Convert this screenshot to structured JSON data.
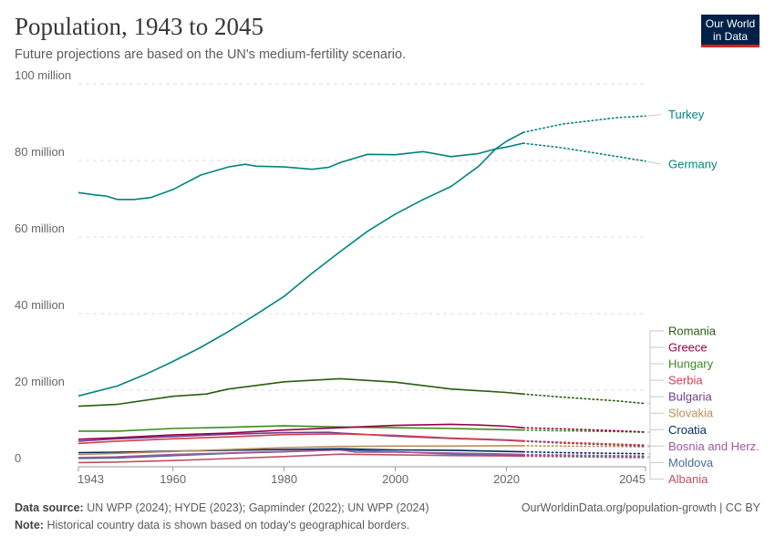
{
  "header": {
    "title": "Population, 1943 to 2045",
    "subtitle": "Future projections are based on the UN's medium-fertility scenario."
  },
  "logo": {
    "line1": "Our World",
    "line2": "in Data"
  },
  "footer": {
    "source_label": "Data source:",
    "source_text": "UN WPP (2024); HYDE (2023); Gapminder (2022); UN WPP (2024)",
    "url": "OurWorldinData.org/population-growth | CC BY",
    "note_label": "Note:",
    "note_text": "Historical country data is shown based on today's geographical borders."
  },
  "chart_data": {
    "type": "line",
    "title": "Population, 1943 to 2045",
    "subtitle": "Future projections are based on the UN's medium-fertility scenario.",
    "x_range": [
      1943,
      2045
    ],
    "x_ticks": [
      1943,
      1960,
      1980,
      2000,
      2020,
      2045
    ],
    "y_range": [
      0,
      100000000
    ],
    "y_ticks": [
      {
        "value": 0,
        "label": "0"
      },
      {
        "value": 20000000,
        "label": "20 million"
      },
      {
        "value": 40000000,
        "label": "40 million"
      },
      {
        "value": 60000000,
        "label": "60 million"
      },
      {
        "value": 80000000,
        "label": "80 million"
      },
      {
        "value": 100000000,
        "label": "100 million"
      }
    ],
    "grid": "horizontal-dashed",
    "projection_start": 2023,
    "series": [
      {
        "name": "Turkey",
        "color": "#00847e",
        "label_y": 92000000,
        "historical": [
          [
            1943,
            18500000
          ],
          [
            1950,
            21100000
          ],
          [
            1955,
            24100000
          ],
          [
            1960,
            27500000
          ],
          [
            1965,
            31200000
          ],
          [
            1970,
            35300000
          ],
          [
            1975,
            39800000
          ],
          [
            1980,
            44500000
          ],
          [
            1985,
            50500000
          ],
          [
            1990,
            56100000
          ],
          [
            1995,
            61500000
          ],
          [
            2000,
            66000000
          ],
          [
            2005,
            69800000
          ],
          [
            2010,
            73200000
          ],
          [
            2015,
            78500000
          ],
          [
            2018,
            83000000
          ],
          [
            2020,
            85000000
          ],
          [
            2023,
            87300000
          ]
        ],
        "projection": [
          [
            2023,
            87300000
          ],
          [
            2030,
            89500000
          ],
          [
            2040,
            91200000
          ],
          [
            2045,
            91600000
          ]
        ]
      },
      {
        "name": "Germany",
        "color": "#00847e",
        "label_y": 79000000,
        "historical": [
          [
            1943,
            71600000
          ],
          [
            1946,
            71000000
          ],
          [
            1948,
            70700000
          ],
          [
            1950,
            69800000
          ],
          [
            1953,
            69800000
          ],
          [
            1956,
            70300000
          ],
          [
            1960,
            72400000
          ],
          [
            1965,
            76200000
          ],
          [
            1970,
            78300000
          ],
          [
            1973,
            79000000
          ],
          [
            1975,
            78500000
          ],
          [
            1980,
            78300000
          ],
          [
            1985,
            77700000
          ],
          [
            1988,
            78200000
          ],
          [
            1990,
            79400000
          ],
          [
            1995,
            81600000
          ],
          [
            2000,
            81500000
          ],
          [
            2005,
            82300000
          ],
          [
            2010,
            81000000
          ],
          [
            2015,
            81800000
          ],
          [
            2018,
            83000000
          ],
          [
            2020,
            83500000
          ],
          [
            2023,
            84500000
          ]
        ],
        "projection": [
          [
            2023,
            84500000
          ],
          [
            2030,
            83300000
          ],
          [
            2040,
            81000000
          ],
          [
            2045,
            79800000
          ]
        ]
      },
      {
        "name": "Romania",
        "color": "#285e0d",
        "label_y": 35500000,
        "historical": [
          [
            1943,
            15800000
          ],
          [
            1950,
            16300000
          ],
          [
            1960,
            18400000
          ],
          [
            1966,
            19000000
          ],
          [
            1970,
            20300000
          ],
          [
            1980,
            22200000
          ],
          [
            1990,
            23000000
          ],
          [
            2000,
            22100000
          ],
          [
            2010,
            20300000
          ],
          [
            2020,
            19400000
          ],
          [
            2023,
            19000000
          ]
        ],
        "projection": [
          [
            2023,
            19000000
          ],
          [
            2030,
            18200000
          ],
          [
            2040,
            17200000
          ],
          [
            2045,
            16500000
          ]
        ]
      },
      {
        "name": "Greece",
        "color": "#970046",
        "label_y": 31200000,
        "historical": [
          [
            1943,
            7200000
          ],
          [
            1950,
            7600000
          ],
          [
            1960,
            8300000
          ],
          [
            1970,
            8800000
          ],
          [
            1980,
            9600000
          ],
          [
            1990,
            10200000
          ],
          [
            2000,
            10800000
          ],
          [
            2010,
            11100000
          ],
          [
            2015,
            10900000
          ],
          [
            2020,
            10600000
          ],
          [
            2023,
            10200000
          ]
        ],
        "projection": [
          [
            2023,
            10200000
          ],
          [
            2030,
            9900000
          ],
          [
            2040,
            9400000
          ],
          [
            2045,
            9100000
          ]
        ]
      },
      {
        "name": "Hungary",
        "color": "#3d8b1f",
        "label_y": 26900000,
        "historical": [
          [
            1943,
            9300000
          ],
          [
            1950,
            9300000
          ],
          [
            1960,
            10000000
          ],
          [
            1970,
            10300000
          ],
          [
            1980,
            10700000
          ],
          [
            1990,
            10400000
          ],
          [
            2000,
            10200000
          ],
          [
            2010,
            10000000
          ],
          [
            2020,
            9700000
          ],
          [
            2023,
            9600000
          ]
        ],
        "projection": [
          [
            2023,
            9600000
          ],
          [
            2030,
            9400000
          ],
          [
            2040,
            9200000
          ],
          [
            2045,
            9000000
          ]
        ]
      },
      {
        "name": "Serbia",
        "color": "#d73c50",
        "label_y": 22600000,
        "historical": [
          [
            1943,
            6100000
          ],
          [
            1950,
            6700000
          ],
          [
            1960,
            7300000
          ],
          [
            1970,
            7800000
          ],
          [
            1980,
            8400000
          ],
          [
            1990,
            8600000
          ],
          [
            2000,
            8200000
          ],
          [
            2010,
            7500000
          ],
          [
            2020,
            7000000
          ],
          [
            2023,
            6800000
          ]
        ],
        "projection": [
          [
            2023,
            6800000
          ],
          [
            2030,
            6400000
          ],
          [
            2040,
            5900000
          ],
          [
            2045,
            5700000
          ]
        ]
      },
      {
        "name": "Bulgaria",
        "color": "#6d3e91",
        "label_y": 18300000,
        "historical": [
          [
            1943,
            6700000
          ],
          [
            1950,
            7300000
          ],
          [
            1960,
            7900000
          ],
          [
            1970,
            8500000
          ],
          [
            1980,
            8900000
          ],
          [
            1988,
            9000000
          ],
          [
            1990,
            8800000
          ],
          [
            2000,
            8000000
          ],
          [
            2010,
            7400000
          ],
          [
            2020,
            6900000
          ],
          [
            2023,
            6700000
          ]
        ],
        "projection": [
          [
            2023,
            6700000
          ],
          [
            2030,
            6200000
          ],
          [
            2040,
            5700000
          ],
          [
            2045,
            5400000
          ]
        ]
      },
      {
        "name": "Slovakia",
        "color": "#bc8e5a",
        "label_y": 14000000,
        "historical": [
          [
            1943,
            3200000
          ],
          [
            1950,
            3500000
          ],
          [
            1960,
            4000000
          ],
          [
            1970,
            4500000
          ],
          [
            1980,
            5000000
          ],
          [
            1990,
            5300000
          ],
          [
            2000,
            5400000
          ],
          [
            2010,
            5400000
          ],
          [
            2020,
            5500000
          ],
          [
            2023,
            5500000
          ]
        ],
        "projection": [
          [
            2023,
            5500000
          ],
          [
            2030,
            5400000
          ],
          [
            2040,
            5300000
          ],
          [
            2045,
            5200000
          ]
        ]
      },
      {
        "name": "Croatia",
        "color": "#00295b",
        "label_y": 9700000,
        "historical": [
          [
            1943,
            3700000
          ],
          [
            1950,
            3800000
          ],
          [
            1960,
            4100000
          ],
          [
            1970,
            4300000
          ],
          [
            1980,
            4500000
          ],
          [
            1990,
            4700000
          ],
          [
            2000,
            4400000
          ],
          [
            2010,
            4300000
          ],
          [
            2020,
            4000000
          ],
          [
            2023,
            3900000
          ]
        ],
        "projection": [
          [
            2023,
            3900000
          ],
          [
            2030,
            3700000
          ],
          [
            2040,
            3500000
          ],
          [
            2045,
            3400000
          ]
        ]
      },
      {
        "name": "Bosnia and Herz.",
        "color": "#a2559c",
        "label_y": 5400000,
        "historical": [
          [
            1943,
            2400000
          ],
          [
            1950,
            2600000
          ],
          [
            1960,
            3200000
          ],
          [
            1970,
            3600000
          ],
          [
            1980,
            4000000
          ],
          [
            1990,
            4400000
          ],
          [
            1993,
            3800000
          ],
          [
            2000,
            3800000
          ],
          [
            2010,
            3600000
          ],
          [
            2020,
            3300000
          ],
          [
            2023,
            3200000
          ]
        ],
        "projection": [
          [
            2023,
            3200000
          ],
          [
            2030,
            3100000
          ],
          [
            2040,
            2900000
          ],
          [
            2045,
            2800000
          ]
        ]
      },
      {
        "name": "Moldova",
        "color": "#4c6a9c",
        "label_y": 1100000,
        "historical": [
          [
            1943,
            2200000
          ],
          [
            1950,
            2300000
          ],
          [
            1960,
            2900000
          ],
          [
            1970,
            3500000
          ],
          [
            1980,
            3900000
          ],
          [
            1990,
            4400000
          ],
          [
            2000,
            3900000
          ],
          [
            2010,
            3300000
          ],
          [
            2020,
            3100000
          ],
          [
            2023,
            3000000
          ]
        ],
        "projection": [
          [
            2023,
            3000000
          ],
          [
            2030,
            2900000
          ],
          [
            2040,
            2700000
          ],
          [
            2045,
            2600000
          ]
        ]
      },
      {
        "name": "Albania",
        "color": "#c15065",
        "label_y": -3200000,
        "historical": [
          [
            1943,
            1100000
          ],
          [
            1950,
            1250000
          ],
          [
            1960,
            1630000
          ],
          [
            1970,
            2150000
          ],
          [
            1980,
            2670000
          ],
          [
            1990,
            3290000
          ],
          [
            2000,
            3130000
          ],
          [
            2010,
            2920000
          ],
          [
            2020,
            2840000
          ],
          [
            2023,
            2750000
          ]
        ],
        "projection": [
          [
            2023,
            2750000
          ],
          [
            2030,
            2650000
          ],
          [
            2040,
            2450000
          ],
          [
            2045,
            2350000
          ]
        ]
      }
    ]
  }
}
